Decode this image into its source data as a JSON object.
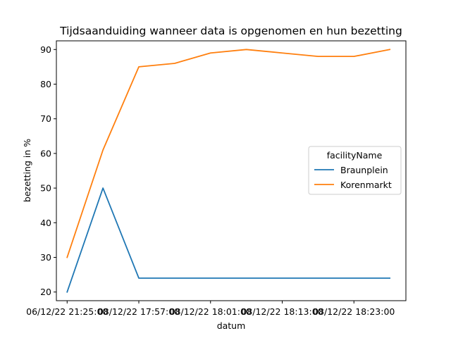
{
  "chart_data": {
    "type": "line",
    "title": "Tijdsaanduiding wanneer data is opgenomen en hun bezetting",
    "xlabel": "datum",
    "ylabel": "bezetting in %",
    "x_ticks": [
      {
        "index": 0,
        "label": "06/12/22 21:25:00"
      },
      {
        "index": 2,
        "label": "08/12/22 17:57:00"
      },
      {
        "index": 4,
        "label": "08/12/22 18:01:00"
      },
      {
        "index": 6,
        "label": "08/12/22 18:13:00"
      },
      {
        "index": 8,
        "label": "08/12/22 18:23:00"
      }
    ],
    "y_ticks": [
      20,
      30,
      40,
      50,
      60,
      70,
      80,
      90
    ],
    "ylim": [
      17.5,
      92.5
    ],
    "xlim": [
      -0.3,
      9.45
    ],
    "legend": {
      "title": "facilityName",
      "placement": "center-right"
    },
    "grid": false,
    "series": [
      {
        "name": "Braunplein",
        "color": "#1f77b4",
        "values": [
          20,
          50,
          24,
          24,
          24,
          24,
          24,
          24,
          24,
          24
        ]
      },
      {
        "name": "Korenmarkt",
        "color": "#ff7f0e",
        "values": [
          30,
          61,
          85,
          86,
          89,
          90,
          89,
          88,
          88,
          90
        ]
      }
    ]
  }
}
